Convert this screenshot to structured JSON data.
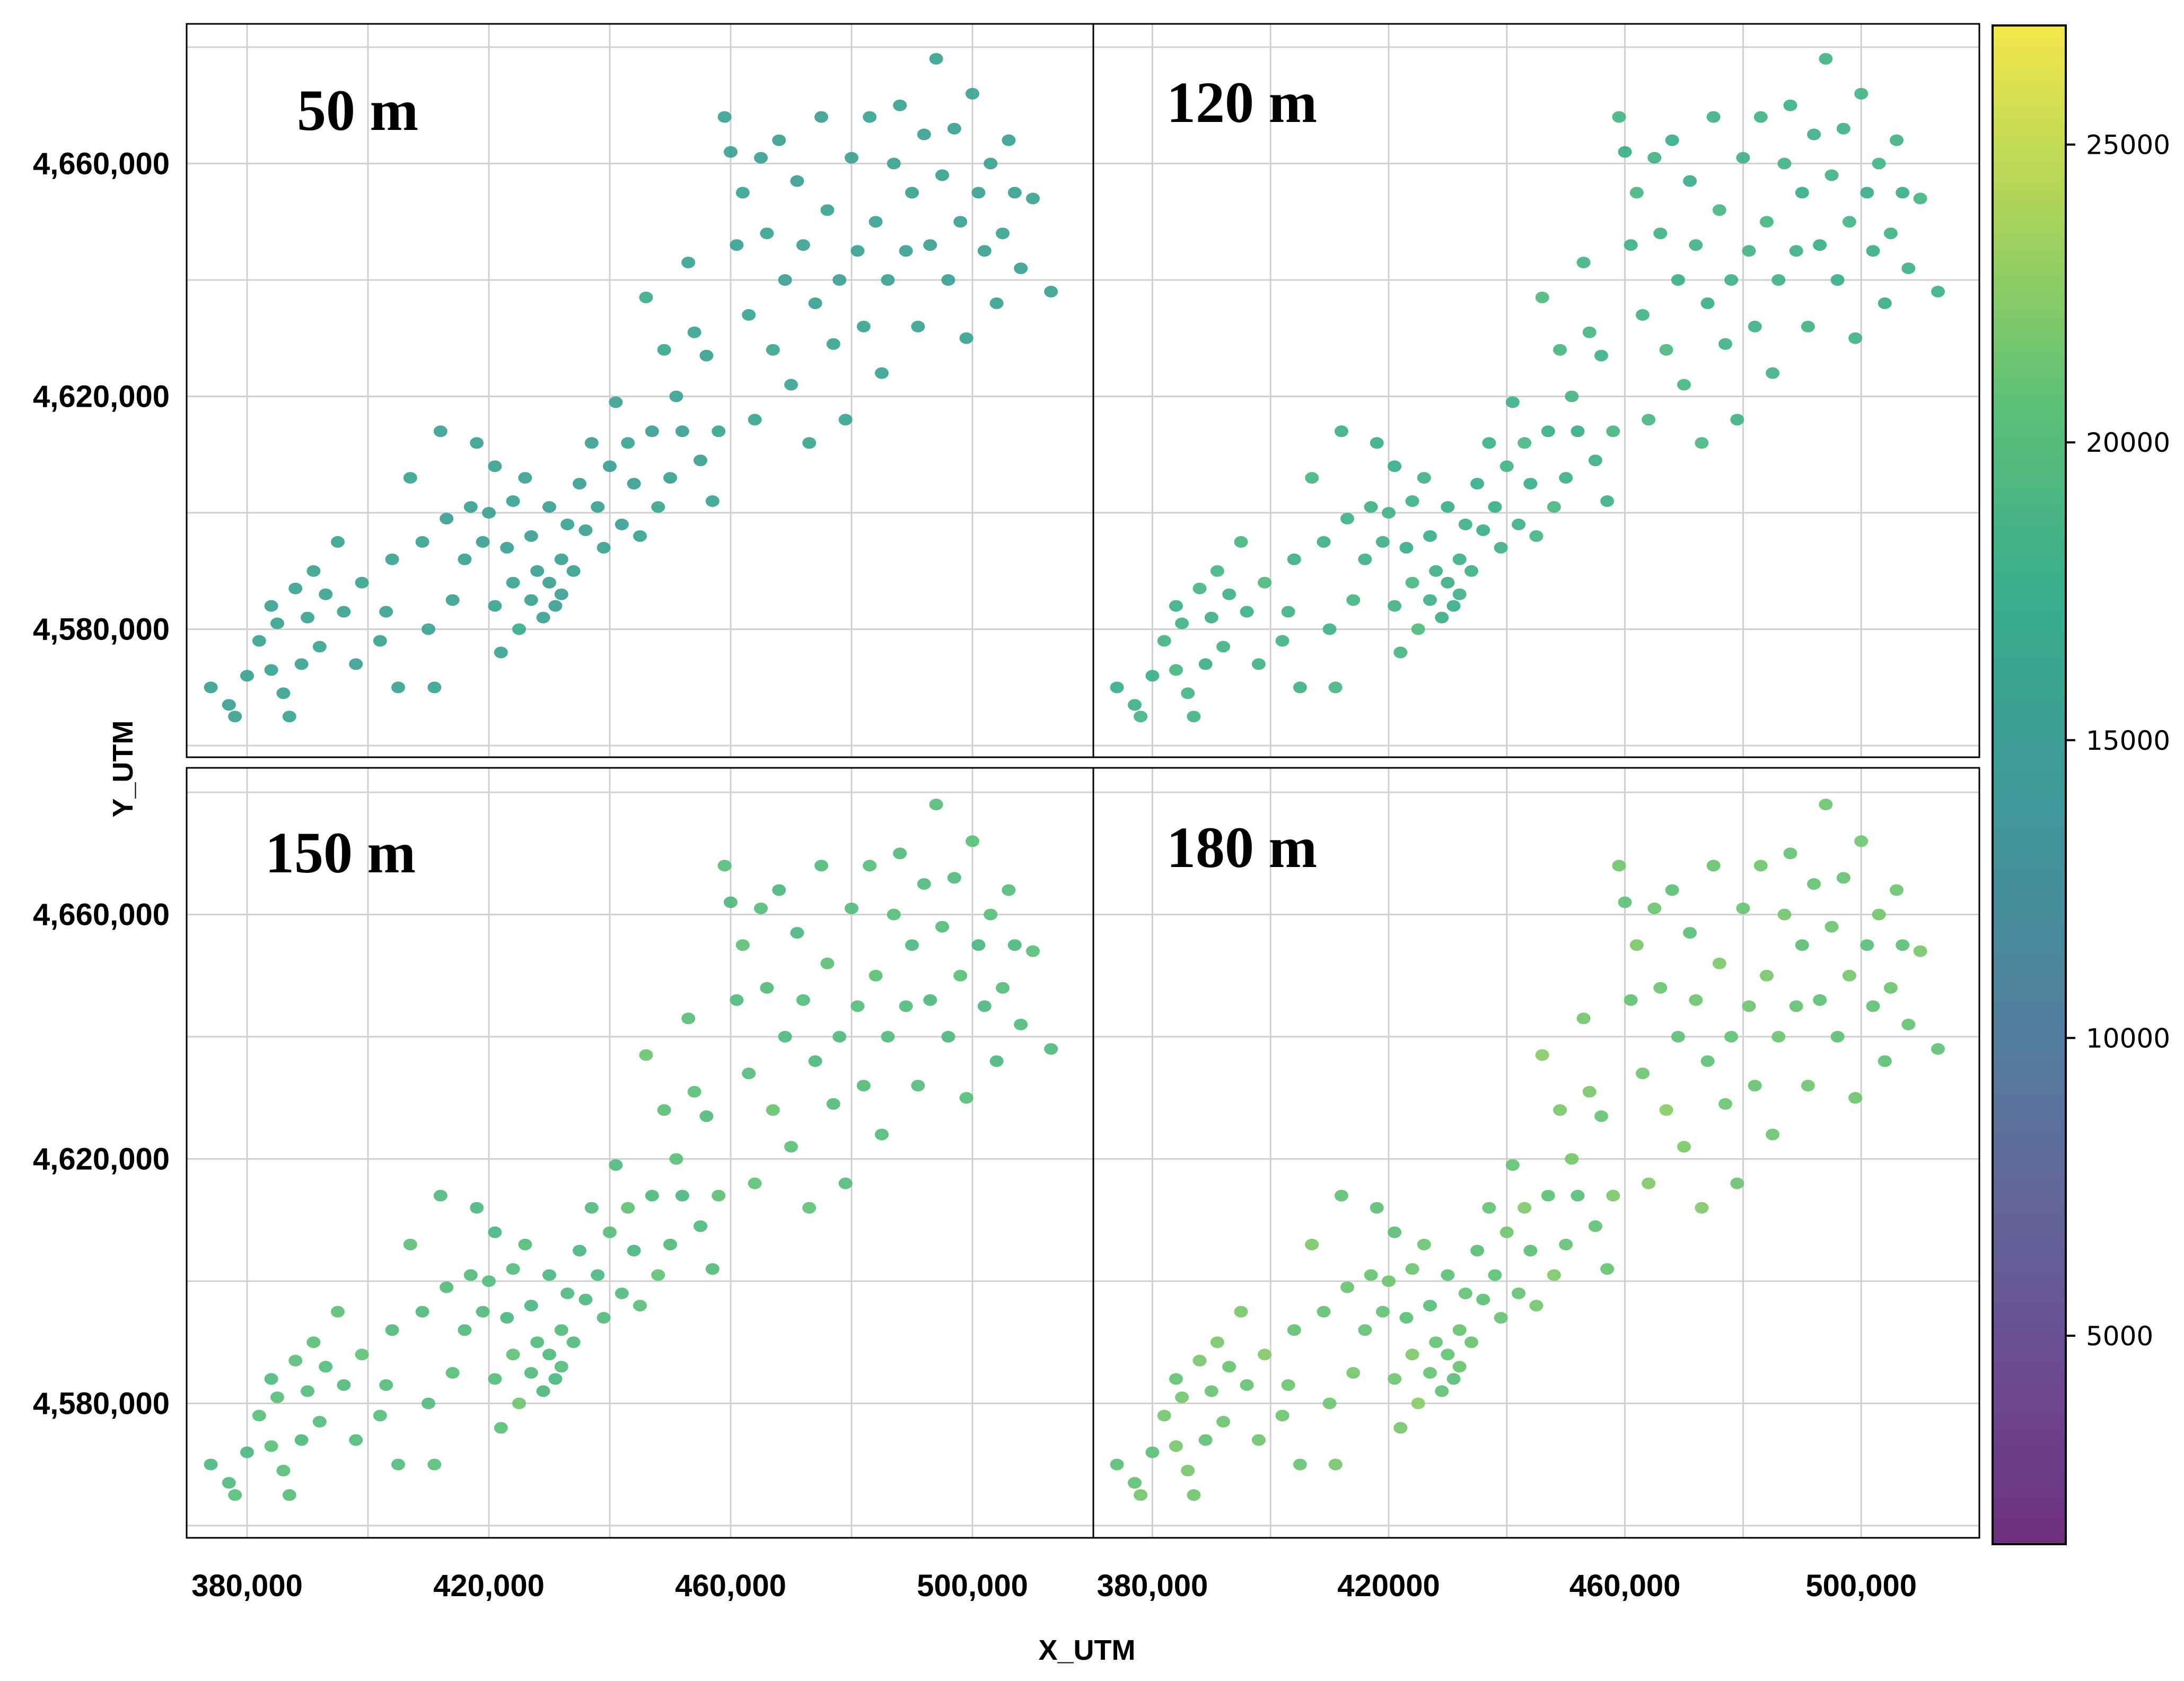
{
  "chart_data": {
    "type": "scatter",
    "layout": "2x2 facet grid with shared colorbar",
    "xlabel": "X_UTM",
    "ylabel": "Y_UTM",
    "xlim": [
      370000,
      520000
    ],
    "ylim": [
      4558000,
      4684000
    ],
    "x_ticks": [
      380000,
      420000,
      460000,
      500000
    ],
    "x_tick_labels_left": [
      "380,000",
      "420,000",
      "460,000",
      "500,000"
    ],
    "x_tick_labels_right": [
      "380,000",
      "420000",
      "460,000",
      "500,000"
    ],
    "y_ticks": [
      4580000,
      4620000,
      4660000
    ],
    "y_tick_labels": [
      "4,580,000",
      "4,620,000",
      "4,660,000"
    ],
    "colorbar": {
      "colormap": "viridis",
      "range": [
        1500,
        27000
      ],
      "ticks": [
        5000,
        10000,
        15000,
        20000,
        25000
      ],
      "tick_labels": [
        "5000",
        "10000",
        "15000",
        "20000",
        "25000"
      ]
    },
    "panels": [
      {
        "title": "50 m",
        "value_shift": 0
      },
      {
        "title": "120 m",
        "value_shift": 2600
      },
      {
        "title": "150 m",
        "value_shift": 4300
      },
      {
        "title": "180 m",
        "value_shift": 5600
      }
    ],
    "points": [
      [
        374000,
        4570000,
        15500
      ],
      [
        377000,
        4567000,
        15400
      ],
      [
        378000,
        4565000,
        15600
      ],
      [
        380000,
        4572000,
        15500
      ],
      [
        382000,
        4578000,
        16000
      ],
      [
        384000,
        4573000,
        15800
      ],
      [
        384000,
        4584000,
        15700
      ],
      [
        385000,
        4581000,
        15900
      ],
      [
        386000,
        4569000,
        15500
      ],
      [
        387000,
        4565000,
        16100
      ],
      [
        388000,
        4587000,
        16000
      ],
      [
        389000,
        4574000,
        15800
      ],
      [
        390000,
        4582000,
        15700
      ],
      [
        391000,
        4590000,
        15900
      ],
      [
        392000,
        4577000,
        16200
      ],
      [
        393000,
        4586000,
        15600
      ],
      [
        395000,
        4595000,
        15800
      ],
      [
        396000,
        4583000,
        15700
      ],
      [
        398000,
        4574000,
        15600
      ],
      [
        399000,
        4588000,
        16000
      ],
      [
        402000,
        4578000,
        16100
      ],
      [
        403000,
        4583000,
        15500
      ],
      [
        404000,
        4592000,
        15900
      ],
      [
        405000,
        4570000,
        15700
      ],
      [
        407000,
        4606000,
        16000
      ],
      [
        409000,
        4595000,
        15800
      ],
      [
        410000,
        4580000,
        15700
      ],
      [
        411000,
        4570000,
        15600
      ],
      [
        412000,
        4614000,
        15600
      ],
      [
        413000,
        4599000,
        15400
      ],
      [
        414000,
        4585000,
        15500
      ],
      [
        416000,
        4592000,
        15600
      ],
      [
        417000,
        4601000,
        15300
      ],
      [
        418000,
        4612000,
        15700
      ],
      [
        419000,
        4595000,
        15500
      ],
      [
        420000,
        4600000,
        15400
      ],
      [
        421000,
        4608000,
        15200
      ],
      [
        421000,
        4584000,
        15800
      ],
      [
        422000,
        4576000,
        15600
      ],
      [
        423000,
        4594000,
        15300
      ],
      [
        424000,
        4602000,
        15500
      ],
      [
        424000,
        4588000,
        15900
      ],
      [
        425000,
        4580000,
        17200
      ],
      [
        426000,
        4606000,
        15500
      ],
      [
        427000,
        4596000,
        15300
      ],
      [
        427000,
        4585000,
        15600
      ],
      [
        428000,
        4590000,
        15100
      ],
      [
        429000,
        4582000,
        15700
      ],
      [
        430000,
        4601000,
        15000
      ],
      [
        430000,
        4588000,
        14900
      ],
      [
        431000,
        4584000,
        15200
      ],
      [
        432000,
        4592000,
        15400
      ],
      [
        432000,
        4586000,
        15000
      ],
      [
        433000,
        4598000,
        15600
      ],
      [
        434000,
        4590000,
        15300
      ],
      [
        435000,
        4605000,
        15400
      ],
      [
        436000,
        4597000,
        15200
      ],
      [
        437000,
        4612000,
        15000
      ],
      [
        438000,
        4601000,
        15600
      ],
      [
        439000,
        4594000,
        15500
      ],
      [
        440000,
        4608000,
        15400
      ],
      [
        441000,
        4619000,
        15700
      ],
      [
        442000,
        4598000,
        15300
      ],
      [
        443000,
        4612000,
        15900
      ],
      [
        444000,
        4605000,
        15100
      ],
      [
        445000,
        4596000,
        15800
      ],
      [
        446000,
        4637000,
        17500
      ],
      [
        447000,
        4614000,
        15200
      ],
      [
        448000,
        4601000,
        16200
      ],
      [
        449000,
        4628000,
        16800
      ],
      [
        450000,
        4606000,
        15400
      ],
      [
        451000,
        4620000,
        15600
      ],
      [
        452000,
        4614000,
        15100
      ],
      [
        453000,
        4643000,
        15900
      ],
      [
        454000,
        4631000,
        15700
      ],
      [
        455000,
        4609000,
        15500
      ],
      [
        456000,
        4627000,
        15300
      ],
      [
        457000,
        4602000,
        16100
      ],
      [
        458000,
        4614000,
        16500
      ],
      [
        459000,
        4668000,
        15500
      ],
      [
        460000,
        4662000,
        15700
      ],
      [
        461000,
        4646000,
        15300
      ],
      [
        462000,
        4655000,
        15800
      ],
      [
        463000,
        4634000,
        16200
      ],
      [
        464000,
        4616000,
        16400
      ],
      [
        465000,
        4661000,
        15100
      ],
      [
        466000,
        4648000,
        15900
      ],
      [
        467000,
        4628000,
        16600
      ],
      [
        468000,
        4664000,
        15600
      ],
      [
        469000,
        4640000,
        15200
      ],
      [
        470000,
        4622000,
        16000
      ],
      [
        471000,
        4657000,
        15300
      ],
      [
        472000,
        4646000,
        15700
      ],
      [
        473000,
        4612000,
        16100
      ],
      [
        474000,
        4636000,
        15500
      ],
      [
        475000,
        4668000,
        15400
      ],
      [
        476000,
        4652000,
        15800
      ],
      [
        477000,
        4629000,
        15900
      ],
      [
        478000,
        4640000,
        15100
      ],
      [
        479000,
        4616000,
        16200
      ],
      [
        480000,
        4661000,
        15600
      ],
      [
        481000,
        4645000,
        15400
      ],
      [
        482000,
        4632000,
        16000
      ],
      [
        483000,
        4668000,
        15800
      ],
      [
        484000,
        4650000,
        15700
      ],
      [
        485000,
        4624000,
        16100
      ],
      [
        486000,
        4640000,
        15500
      ],
      [
        487000,
        4660000,
        15300
      ],
      [
        488000,
        4670000,
        15600
      ],
      [
        489000,
        4645000,
        15200
      ],
      [
        490000,
        4655000,
        15500
      ],
      [
        491000,
        4632000,
        15900
      ],
      [
        492000,
        4665000,
        15100
      ],
      [
        493000,
        4646000,
        15600
      ],
      [
        494000,
        4678000,
        15800
      ],
      [
        495000,
        4658000,
        15200
      ],
      [
        496000,
        4640000,
        15400
      ],
      [
        497000,
        4666000,
        15300
      ],
      [
        498000,
        4650000,
        15500
      ],
      [
        499000,
        4630000,
        16000
      ],
      [
        500000,
        4672000,
        15700
      ],
      [
        501000,
        4655000,
        15400
      ],
      [
        502000,
        4645000,
        15300
      ],
      [
        503000,
        4660000,
        15600
      ],
      [
        504000,
        4636000,
        15500
      ],
      [
        505000,
        4648000,
        15700
      ],
      [
        506000,
        4664000,
        15200
      ],
      [
        507000,
        4655000,
        15400
      ],
      [
        508000,
        4642000,
        15300
      ],
      [
        510000,
        4654000,
        15600
      ],
      [
        513000,
        4638000,
        15500
      ]
    ]
  }
}
